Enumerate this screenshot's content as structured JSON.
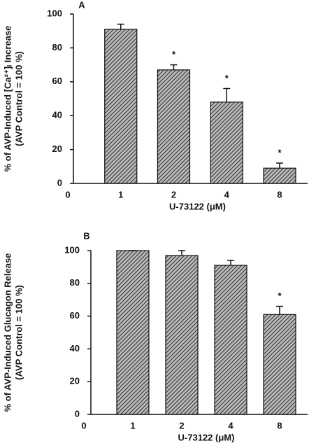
{
  "chart_data": [
    {
      "type": "bar",
      "title": "A",
      "ylabel": [
        "% of AVP-Induced [Ca²⁺]ᵢ Increase",
        "(AVP Control = 100 %)"
      ],
      "xlabel": "U-73122 (μM)",
      "categories": [
        "0",
        "1",
        "2",
        "4",
        "8"
      ],
      "values": [
        null,
        91,
        67,
        48,
        9
      ],
      "errors": [
        null,
        3,
        3,
        8,
        3
      ],
      "annotations": [
        null,
        null,
        "*",
        "*",
        "*"
      ],
      "color": "#333333",
      "ylim": [
        0,
        100
      ],
      "yticks": [
        0,
        20,
        40,
        60,
        80,
        100
      ]
    },
    {
      "type": "bar",
      "title": "B",
      "ylabel": [
        "% of AVP-Induced Glucagon Release",
        "(AVP Control = 100 %)"
      ],
      "xlabel": "U-73122 (μM)",
      "categories": [
        "0",
        "1",
        "2",
        "4",
        "8"
      ],
      "values": [
        null,
        100,
        97,
        91,
        61
      ],
      "errors": [
        null,
        0,
        3,
        3,
        5
      ],
      "annotations": [
        null,
        null,
        null,
        null,
        "*"
      ],
      "color": "#333333",
      "ylim": [
        0,
        100
      ],
      "yticks": [
        0,
        20,
        40,
        60,
        80,
        100
      ]
    }
  ]
}
